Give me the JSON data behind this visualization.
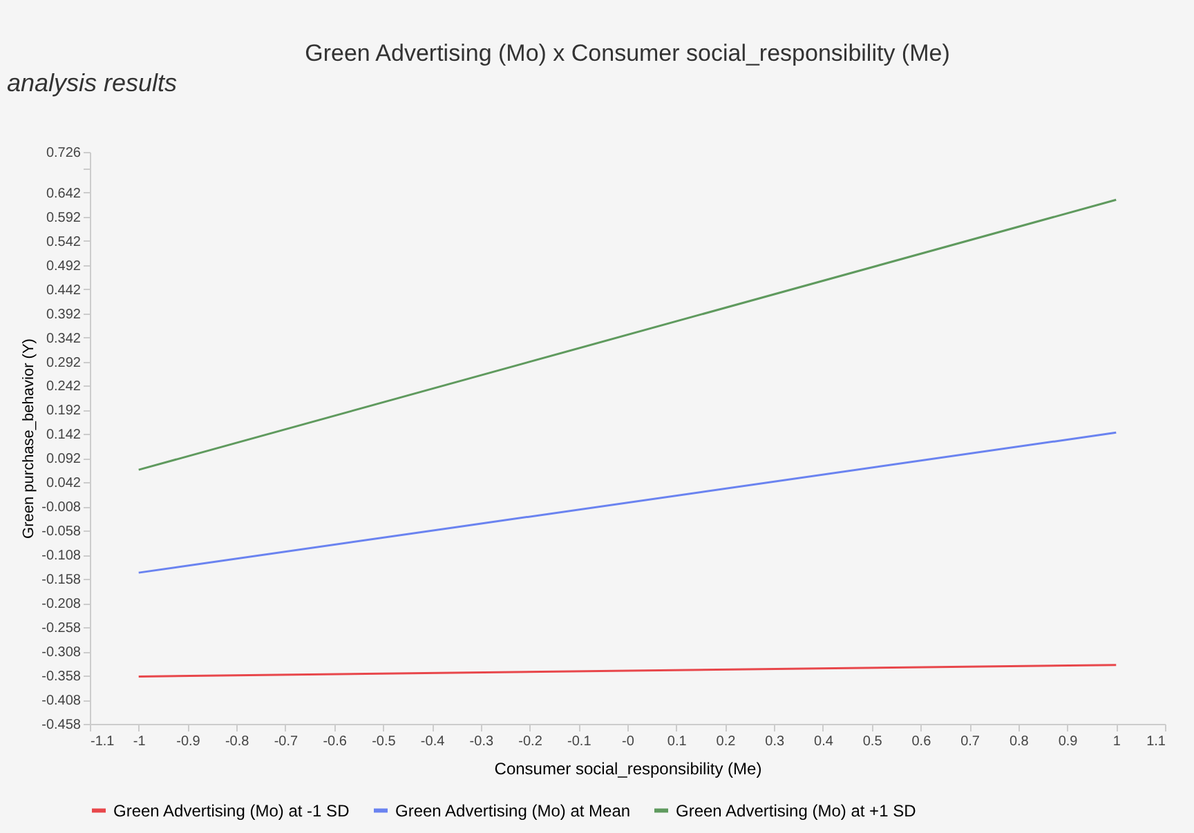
{
  "chart_data": {
    "type": "line",
    "title": "Green Advertising (Mo) x Consumer social_responsibility (Me)",
    "xlabel": "Consumer social_responsibility (Me)",
    "ylabel": "Green purchase_behavior (Y)",
    "annotations": [
      "analysis results"
    ],
    "x": [
      -1,
      1
    ],
    "series": [
      {
        "name": "Green Advertising (Mo) at -1 SD",
        "color": "#e8474b",
        "values": [
          -0.36,
          -0.336
        ]
      },
      {
        "name": "Green Advertising (Mo) at Mean",
        "color": "#6a83f0",
        "values": [
          -0.145,
          0.145
        ]
      },
      {
        "name": "Green Advertising (Mo) at +1 SD",
        "color": "#5f9a5e",
        "values": [
          0.068,
          0.627
        ]
      }
    ],
    "xlim": [
      -1.1,
      1.1
    ],
    "xticks": [
      -1.1,
      -1,
      -0.9,
      -0.8,
      -0.7,
      -0.6,
      -0.5,
      -0.4,
      -0.3,
      -0.2,
      -0.1,
      {
        "value": 0,
        "label": "-0"
      },
      0.1,
      0.2,
      0.3,
      0.4,
      0.5,
      0.6,
      0.7,
      0.8,
      0.9,
      1,
      1.1
    ],
    "ylim": [
      -0.458,
      0.726
    ],
    "yticks": [
      -0.458,
      -0.408,
      -0.358,
      -0.308,
      -0.258,
      -0.208,
      -0.158,
      -0.108,
      -0.058,
      -0.008,
      0.042,
      0.092,
      0.142,
      0.192,
      0.242,
      0.292,
      0.342,
      0.392,
      0.442,
      0.492,
      0.542,
      0.592,
      0.642,
      {
        "value": 0.692,
        "label": null
      },
      0.726
    ],
    "grid": false,
    "legend": "bottom",
    "marker": "none",
    "line_style": "solid"
  }
}
